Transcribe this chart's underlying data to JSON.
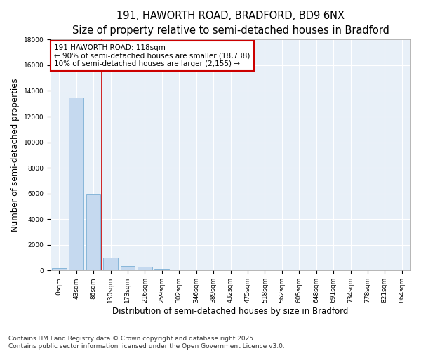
{
  "title_line1": "191, HAWORTH ROAD, BRADFORD, BD9 6NX",
  "title_line2": "Size of property relative to semi-detached houses in Bradford",
  "xlabel": "Distribution of semi-detached houses by size in Bradford",
  "ylabel": "Number of semi-detached properties",
  "categories": [
    "0sqm",
    "43sqm",
    "86sqm",
    "130sqm",
    "173sqm",
    "216sqm",
    "259sqm",
    "302sqm",
    "346sqm",
    "389sqm",
    "432sqm",
    "475sqm",
    "518sqm",
    "562sqm",
    "605sqm",
    "648sqm",
    "691sqm",
    "734sqm",
    "778sqm",
    "821sqm",
    "864sqm"
  ],
  "values": [
    180,
    13500,
    5950,
    1030,
    340,
    310,
    130,
    0,
    0,
    0,
    0,
    0,
    0,
    0,
    0,
    0,
    0,
    0,
    0,
    0,
    0
  ],
  "bar_color": "#c5d9ef",
  "bar_edge_color": "#7bafd4",
  "annotation_text_line1": "191 HAWORTH ROAD: 118sqm",
  "annotation_text_line2": "← 90% of semi-detached houses are smaller (18,738)",
  "annotation_text_line3": "10% of semi-detached houses are larger (2,155) →",
  "annotation_box_color": "#ffffff",
  "annotation_box_edge": "#cc0000",
  "vline_color": "#cc0000",
  "vline_x": 2.5,
  "ylim": [
    0,
    18000
  ],
  "yticks": [
    0,
    2000,
    4000,
    6000,
    8000,
    10000,
    12000,
    14000,
    16000,
    18000
  ],
  "footer_line1": "Contains HM Land Registry data © Crown copyright and database right 2025.",
  "footer_line2": "Contains public sector information licensed under the Open Government Licence v3.0.",
  "fig_background_color": "#ffffff",
  "plot_bg_color": "#e8f0f8",
  "grid_color": "#ffffff",
  "title_fontsize": 10.5,
  "subtitle_fontsize": 9.5,
  "tick_fontsize": 6.5,
  "axis_label_fontsize": 8.5,
  "footer_fontsize": 6.5,
  "annotation_fontsize": 7.5
}
